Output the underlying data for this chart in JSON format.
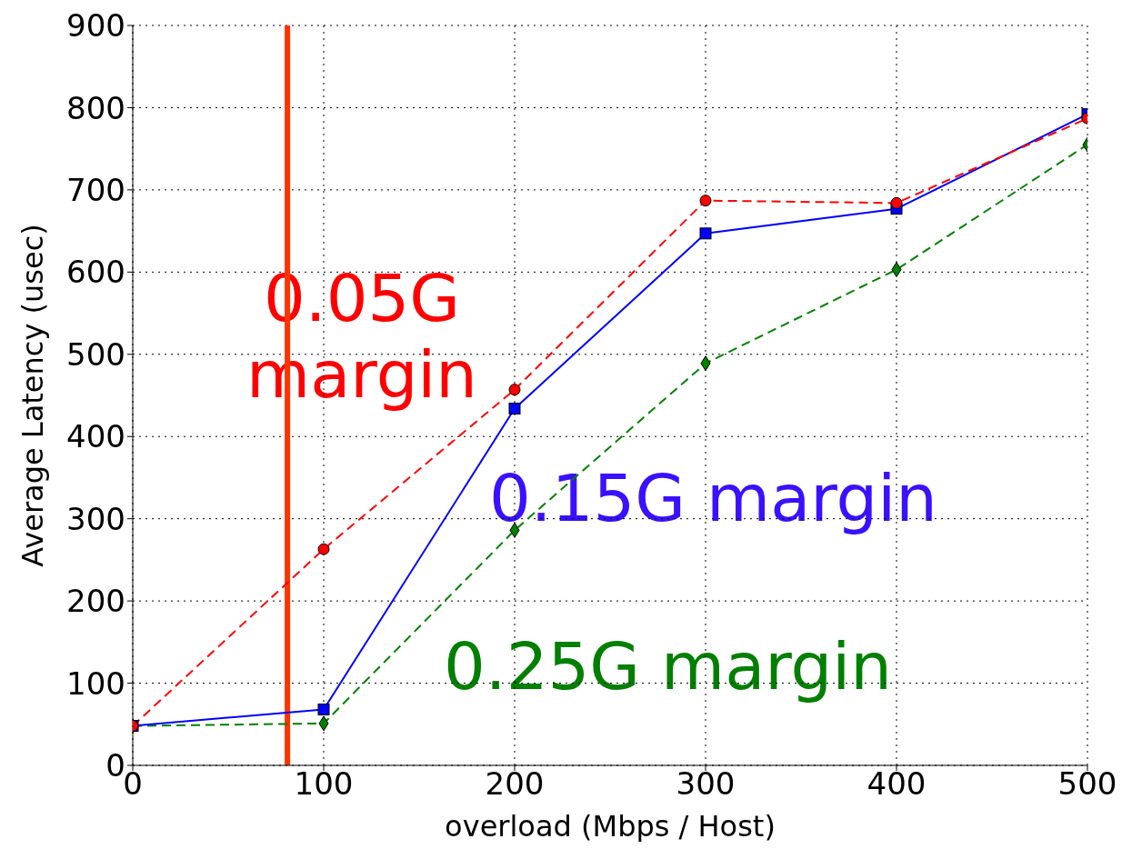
{
  "chart_data": {
    "type": "line",
    "xlabel": "overload (Mbps / Host)",
    "ylabel": "Average Latency (usec)",
    "x": [
      0,
      100,
      200,
      300,
      400,
      500
    ],
    "series": [
      {
        "name": "0.05G margin",
        "color": "#ff0000",
        "values": [
          48,
          263,
          457,
          687,
          684,
          787
        ],
        "marker": "circle",
        "line_style": "dashed"
      },
      {
        "name": "0.15G margin",
        "color": "#0000ff",
        "values": [
          48,
          68,
          434,
          647,
          677,
          792
        ],
        "marker": "square",
        "line_style": "solid"
      },
      {
        "name": "0.25G margin",
        "color": "#008000",
        "values": [
          48,
          51,
          286,
          489,
          603,
          755
        ],
        "marker": "diamond",
        "line_style": "dashed"
      }
    ],
    "xlim": [
      0,
      500
    ],
    "xticks": [
      0,
      100,
      200,
      300,
      400,
      500
    ],
    "ylim": [
      0,
      900
    ],
    "yticks": [
      0,
      100,
      200,
      300,
      400,
      500,
      600,
      700,
      800,
      900
    ],
    "grid": true,
    "legend": false,
    "ref_lines": [
      {
        "axis": "x",
        "value": 81,
        "color": "#ff3300"
      }
    ]
  }
}
